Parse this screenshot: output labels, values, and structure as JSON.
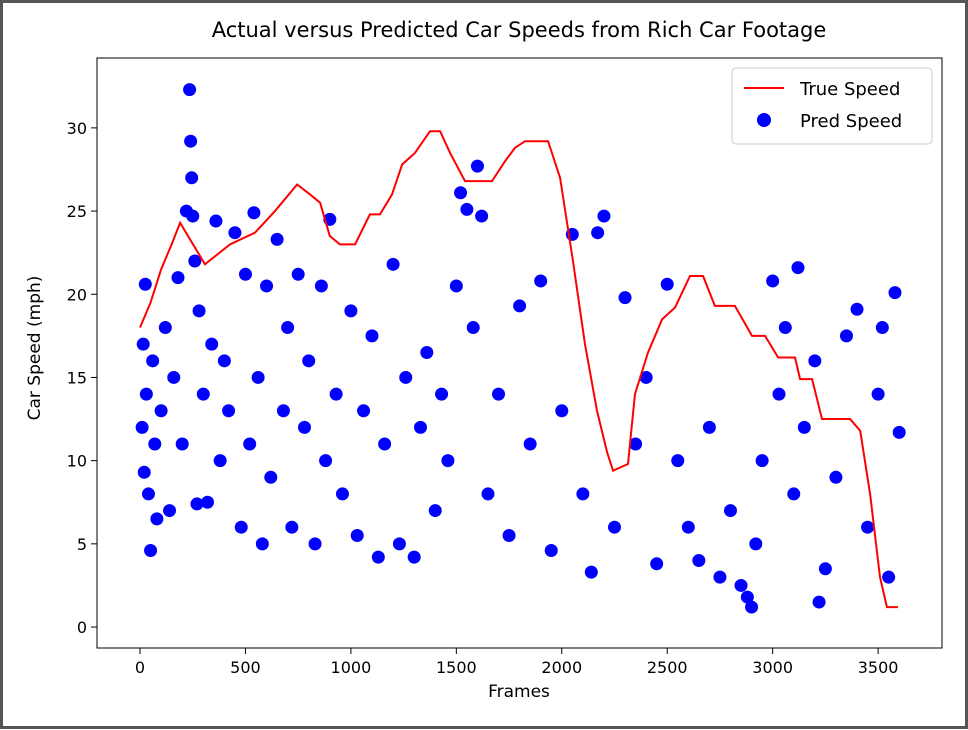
{
  "chart_data": {
    "type": "line_scatter",
    "title": "Actual versus Predicted Car Speeds from Rich Car Footage",
    "x_label": "Frames",
    "y_label": "Car Speed (mph)",
    "xlim": [
      -204,
      3803
    ],
    "ylim": [
      -1.26,
      34.2
    ],
    "xticks": [
      0,
      500,
      1000,
      1500,
      2000,
      2500,
      3000,
      3500
    ],
    "yticks": [
      0,
      5,
      10,
      15,
      20,
      25,
      30
    ],
    "grid": false,
    "legend": "upper right",
    "series": [
      {
        "name": "True Speed",
        "kind": "line",
        "color": "#ff0000",
        "x": [
          0,
          50,
          100,
          150,
          190,
          308,
          427,
          545,
          640,
          745,
          806,
          854,
          900,
          948,
          1020,
          1090,
          1138,
          1195,
          1243,
          1304,
          1375,
          1423,
          1470,
          1541,
          1669,
          1731,
          1778,
          1826,
          1935,
          1992,
          2053,
          2110,
          2167,
          2215,
          2243,
          2314,
          2347,
          2409,
          2476,
          2537,
          2608,
          2670,
          2726,
          2821,
          2902,
          2964,
          3026,
          3106,
          3130,
          3187,
          3234,
          3367,
          3415,
          3462,
          3509,
          3542,
          3594
        ],
        "values": [
          18.0,
          19.5,
          21.5,
          23.0,
          24.3,
          21.8,
          23.0,
          23.7,
          25.0,
          26.6,
          26.0,
          25.5,
          23.5,
          23.0,
          23.0,
          24.8,
          24.8,
          26.0,
          27.8,
          28.5,
          29.8,
          29.8,
          28.5,
          26.8,
          26.8,
          28.0,
          28.8,
          29.2,
          29.2,
          27.0,
          22.0,
          17.0,
          13.0,
          10.5,
          9.4,
          9.8,
          14.0,
          16.5,
          18.5,
          19.2,
          21.1,
          21.1,
          19.3,
          19.3,
          17.5,
          17.5,
          16.2,
          16.2,
          14.9,
          14.9,
          12.5,
          12.5,
          11.8,
          8.0,
          3.0,
          1.2,
          1.2
        ]
      },
      {
        "name": "Pred Speed",
        "kind": "scatter",
        "color": "#0000ff",
        "x": [
          10,
          15,
          20,
          25,
          30,
          40,
          50,
          60,
          70,
          80,
          100,
          120,
          140,
          160,
          180,
          200,
          220,
          235,
          240,
          245,
          250,
          260,
          270,
          280,
          300,
          320,
          340,
          360,
          380,
          400,
          420,
          450,
          480,
          500,
          520,
          540,
          560,
          580,
          600,
          620,
          650,
          680,
          700,
          720,
          750,
          780,
          800,
          830,
          860,
          880,
          900,
          930,
          960,
          1000,
          1030,
          1060,
          1100,
          1130,
          1160,
          1200,
          1230,
          1260,
          1300,
          1330,
          1360,
          1400,
          1430,
          1460,
          1500,
          1520,
          1550,
          1580,
          1600,
          1620,
          1650,
          1700,
          1750,
          1800,
          1850,
          1900,
          1950,
          2000,
          2050,
          2100,
          2140,
          2170,
          2200,
          2250,
          2300,
          2350,
          2400,
          2450,
          2500,
          2550,
          2600,
          2650,
          2700,
          2750,
          2800,
          2850,
          2880,
          2900,
          2920,
          2950,
          3000,
          3030,
          3060,
          3100,
          3120,
          3150,
          3200,
          3220,
          3250,
          3300,
          3350,
          3400,
          3450,
          3500,
          3520,
          3550,
          3580,
          3600
        ],
        "y": [
          12,
          17,
          9.3,
          20.6,
          14,
          8,
          4.6,
          16,
          11,
          6.5,
          13,
          18,
          7,
          15,
          21,
          11,
          25,
          32.3,
          29.2,
          27,
          24.7,
          22,
          7.4,
          19,
          14,
          7.5,
          17,
          24.4,
          10,
          16,
          13,
          23.7,
          6,
          21.2,
          11,
          24.9,
          15,
          5,
          20.5,
          9,
          23.3,
          13,
          18,
          6,
          21.2,
          12,
          16,
          5,
          20.5,
          10,
          24.5,
          14,
          8,
          19,
          5.5,
          13,
          17.5,
          4.2,
          11,
          21.8,
          5,
          15,
          4.2,
          12,
          16.5,
          7,
          14,
          10,
          20.5,
          26.1,
          25.1,
          18,
          27.7,
          24.7,
          8,
          14,
          5.5,
          19.3,
          11,
          20.8,
          4.6,
          13,
          23.6,
          8,
          3.3,
          23.7,
          24.7,
          6,
          19.8,
          11,
          15,
          3.8,
          20.6,
          10,
          6,
          4,
          12,
          3,
          7,
          2.5,
          1.8,
          1.2,
          5,
          10,
          20.8,
          14,
          18,
          8,
          21.6,
          12,
          16,
          1.5,
          3.5,
          9,
          17.5,
          19.1,
          6,
          14,
          18,
          3,
          20.1,
          11.7
        ]
      }
    ]
  }
}
